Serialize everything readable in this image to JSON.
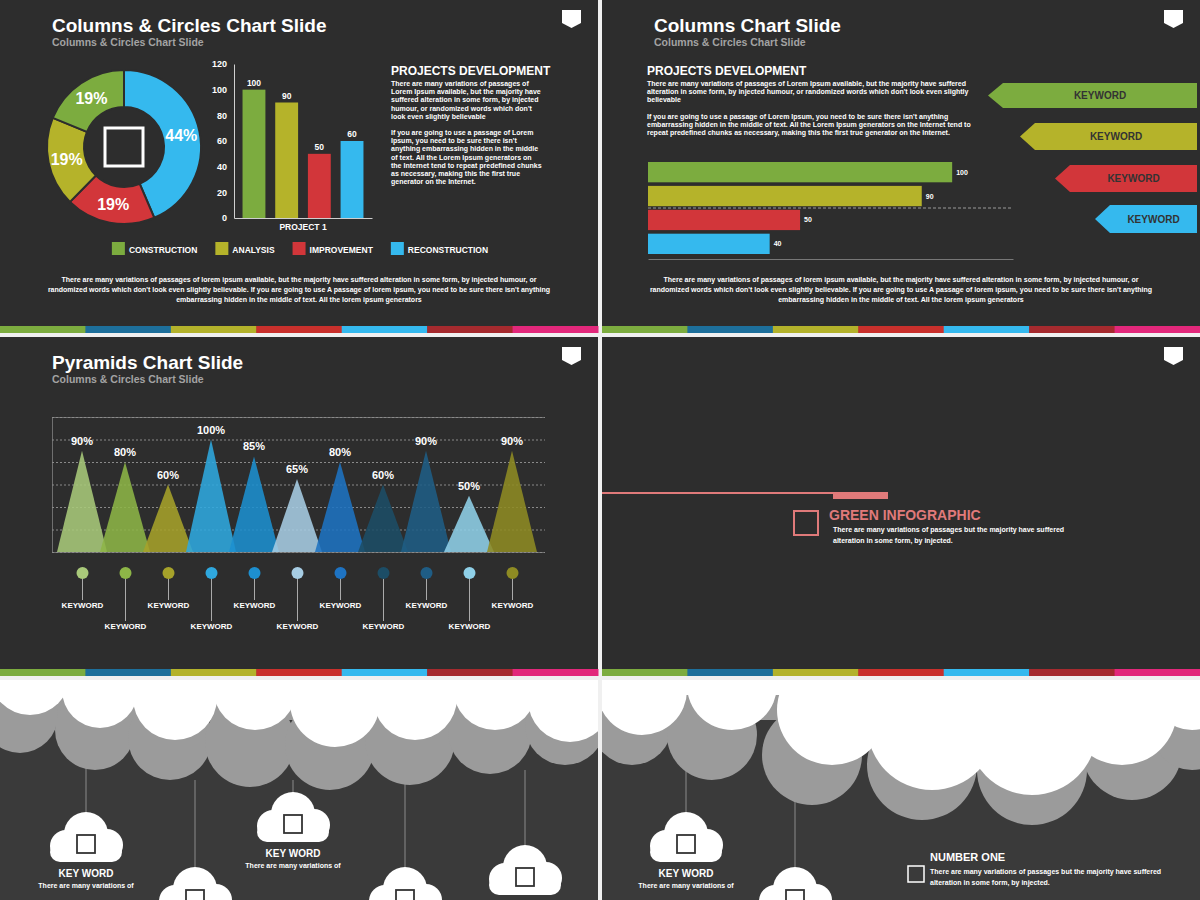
{
  "slides": [
    {
      "title": "Columns & Circles Chart Slide",
      "subtitle": "Columns & Circles Chart Slide",
      "heading": "PROJECTS DEVELOPMENT",
      "paragraphs": [
        "There are many variations of passages of Lorem Ipsum available, but the majority have suffered alteration in some form, by injected humour, or randomized words which don't look even slightly believable",
        "If you are going to use a passage of Lorem Ipsum, you need to be sure there isn't anything embarrassing hidden in the middle of text. All the Lorem Ipsum generators on the Internet tend to repeat predefined chunks as necessary, making this the first true generator on the Internet."
      ],
      "footer": "There are many variations of passages of lorem ipsum available, but the majority have suffered alteration in some form, by injected humour, or randomized words which don't look even slightly believable. If you are going to use A passage of lorem ipsum, you need to be sure there isn't anything embarrassing hidden in the middle of text. All the lorem ipsum generators"
    },
    {
      "title": "Columns Chart Slide",
      "subtitle": "Columns & Circles Chart Slide",
      "heading": "PROJECTS DEVELOPMENT",
      "paragraphs": [
        "There are many variations of passages of Lorem Ipsum available, but the majority have suffered alteration in some form, by injected humour, or randomized words which don't look even slightly believable",
        "If you are going to use a passage of Lorem Ipsum, you need to be sure there isn't anything embarrassing hidden in the middle of text. All the Lorem Ipsum generators on the Internet tend to repeat predefined chunks as necessary, making this the first true generator on the Internet."
      ],
      "keywords": [
        "KEYWORD",
        "KEYWORD",
        "KEYWORD",
        "KEYWORD"
      ],
      "footer": "There are many variations of passages of lorem ipsum available, but the majority have suffered alteration in some form, by injected humour, or randomized words which don't look even slightly believable. If you are going to use A passage of lorem ipsum, you need to be sure there isn't anything embarrassing hidden in the middle of text. All the lorem ipsum generators"
    },
    {
      "title": "Pyramids Chart Slide",
      "subtitle": "Columns & Circles Chart Slide"
    },
    {
      "title": "GREEN INFOGRAPHIC",
      "text": "There are many variations of passages but the majority have suffered alteration in some form, by injected."
    },
    {
      "items": [
        {
          "title": "KEY WORD",
          "text": "There are many variations of"
        },
        {
          "title": "KEY WORD",
          "text": "There are many variations of"
        }
      ]
    },
    {
      "items": [
        {
          "title": "KEY WORD",
          "text": "There are many variations of"
        }
      ],
      "title": "NUMBER ONE",
      "text": "There are many variations of passages but the majority have suffered alteration in some form, by injected."
    }
  ],
  "chart_data": [
    {
      "type": "pie",
      "values": [
        44,
        19,
        19,
        19
      ],
      "value_labels": [
        "44%",
        "19%",
        "19%",
        "19%"
      ],
      "colors": [
        "#35b9ee",
        "#d2363a",
        "#b5b32a",
        "#7cac3f"
      ],
      "data_labels": true
    },
    {
      "type": "bar",
      "categories": [
        "PROJECT 1"
      ],
      "series": [
        {
          "name": "CONSTRUCTION",
          "color": "#7cac3f",
          "values": [
            100
          ]
        },
        {
          "name": "ANALYSIS",
          "color": "#b5b32a",
          "values": [
            90
          ]
        },
        {
          "name": "IMPROVEMENT",
          "color": "#d2363a",
          "values": [
            50
          ]
        },
        {
          "name": "RECONSTRUCTION",
          "color": "#35b9ee",
          "values": [
            60
          ]
        }
      ],
      "ylim": [
        0,
        120
      ],
      "yticks": [
        0,
        20,
        40,
        60,
        80,
        100,
        120
      ],
      "grid": false,
      "legend": "bottom",
      "data_labels": true
    },
    {
      "type": "bar",
      "orientation": "horizontal",
      "values": [
        100,
        90,
        50,
        40
      ],
      "colors": [
        "#7cac3f",
        "#b5b32a",
        "#d2363a",
        "#35b9ee"
      ],
      "xlim": [
        0,
        120
      ],
      "tick_labels": false,
      "data_labels": true
    },
    {
      "type": "pyramid",
      "categories": [
        "KEYWORD",
        "KEYWORD",
        "KEYWORD",
        "KEYWORD",
        "KEYWORD",
        "KEYWORD",
        "KEYWORD",
        "KEYWORD",
        "KEYWORD",
        "KEYWORD",
        "KEYWORD"
      ],
      "values": [
        90,
        80,
        60,
        100,
        85,
        65,
        80,
        60,
        90,
        50,
        90
      ],
      "value_labels": [
        "90%",
        "80%",
        "60%",
        "100%",
        "85%",
        "65%",
        "80%",
        "60%",
        "90%",
        "50%",
        "90%"
      ],
      "colors": [
        "#a9c97a",
        "#8db547",
        "#a6a22a",
        "#2fa8df",
        "#1d8fcf",
        "#a7cde4",
        "#1e73c2",
        "#1c4d66",
        "#1f5d85",
        "#8fd0e8",
        "#8e8b23"
      ],
      "ylim": [
        0,
        120
      ],
      "yticks": [
        0,
        20,
        40,
        60,
        80,
        100,
        120
      ],
      "grid": true,
      "tick_labels": "x",
      "data_labels": true
    }
  ]
}
